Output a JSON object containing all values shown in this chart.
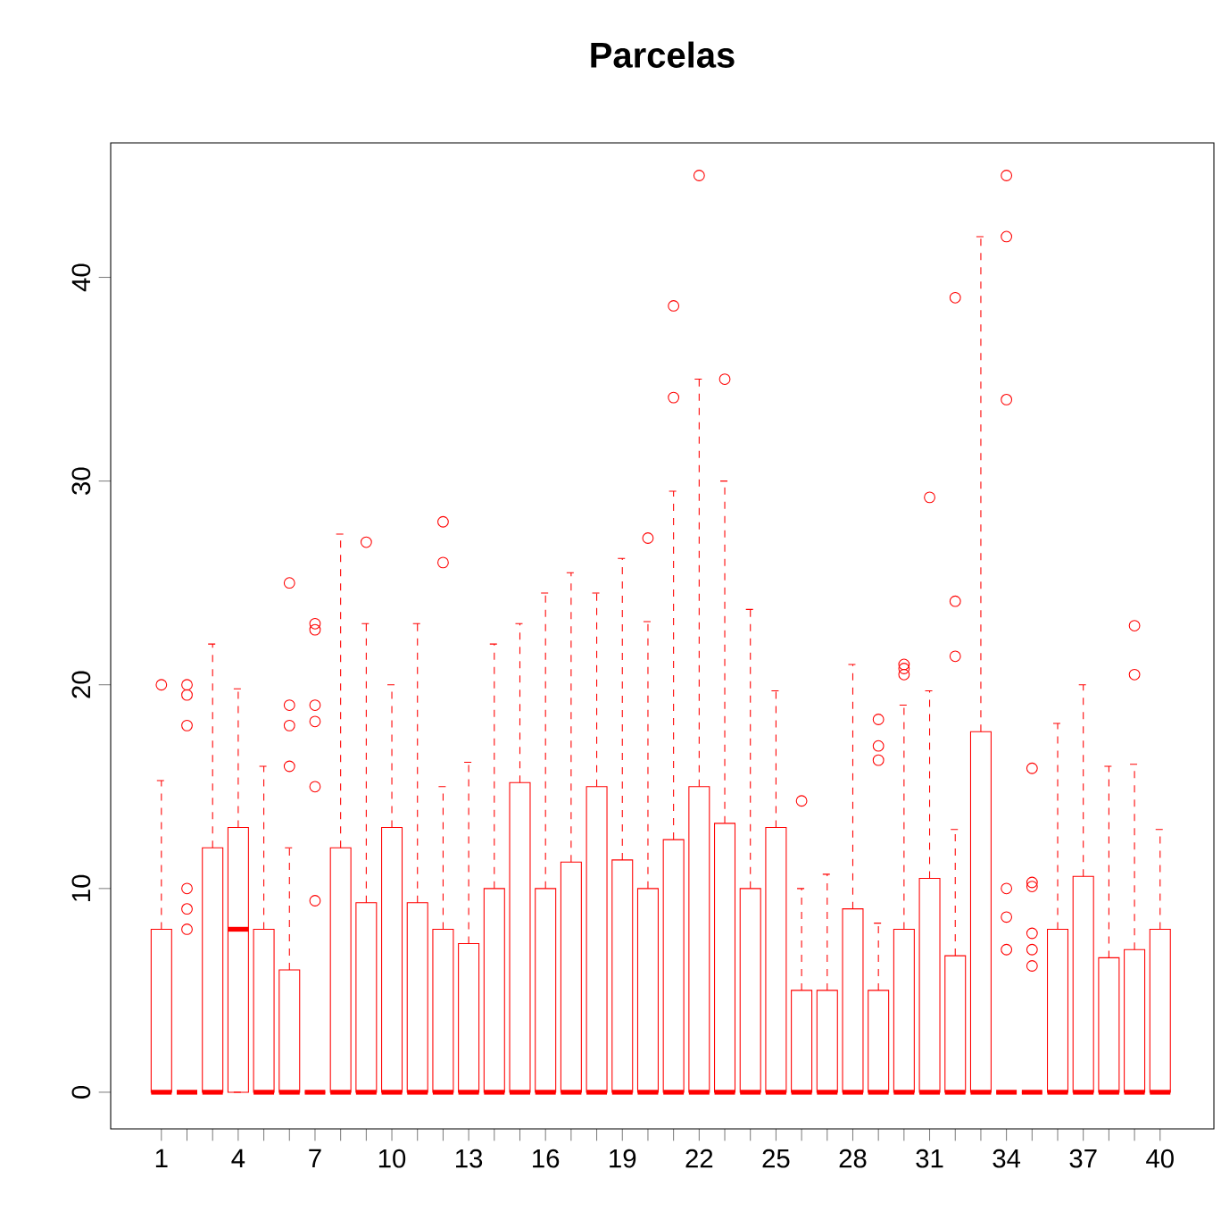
{
  "chart_data": {
    "type": "box",
    "title": "Parcelas",
    "color": "#ff0000",
    "categories": [
      "1",
      null,
      null,
      "4",
      null,
      null,
      "7",
      null,
      null,
      "10",
      null,
      null,
      "13",
      null,
      null,
      "16",
      null,
      null,
      "19",
      null,
      null,
      "22",
      null,
      null,
      "25",
      null,
      null,
      "28",
      null,
      null,
      "31",
      null,
      null,
      "34",
      null,
      null,
      "37",
      null,
      null,
      "40"
    ],
    "ylim": [
      -1.8,
      46.6
    ],
    "yticks": [
      0,
      10,
      20,
      30,
      40
    ],
    "boxes": [
      {
        "low": 0,
        "q1": 0,
        "median": 0,
        "q3": 8,
        "high": 15.3,
        "outliers": [
          20
        ]
      },
      {
        "low": 0,
        "q1": 0,
        "median": 0,
        "q3": 0,
        "high": 0,
        "outliers": [
          8,
          9,
          10,
          18,
          19.5,
          20
        ]
      },
      {
        "low": 0,
        "q1": 0,
        "median": 0,
        "q3": 12,
        "high": 22
      },
      {
        "low": 0,
        "q1": 0,
        "median": 8,
        "q3": 13,
        "high": 19.8
      },
      {
        "low": 0,
        "q1": 0,
        "median": 0,
        "q3": 8,
        "high": 16
      },
      {
        "low": 0,
        "q1": 0,
        "median": 0,
        "q3": 6,
        "high": 12,
        "outliers": [
          16,
          18,
          19,
          25
        ]
      },
      {
        "low": 0,
        "q1": 0,
        "median": 0,
        "q3": 0,
        "high": 0,
        "outliers": [
          9.4,
          15,
          18.2,
          19,
          22.7,
          23
        ]
      },
      {
        "low": 0,
        "q1": 0,
        "median": 0,
        "q3": 12,
        "high": 27.4
      },
      {
        "low": 0,
        "q1": 0,
        "median": 0,
        "q3": 9.3,
        "high": 23,
        "outliers": [
          27
        ]
      },
      {
        "low": 0,
        "q1": 0,
        "median": 0,
        "q3": 13,
        "high": 20
      },
      {
        "low": 0,
        "q1": 0,
        "median": 0,
        "q3": 9.3,
        "high": 23
      },
      {
        "low": 0,
        "q1": 0,
        "median": 0,
        "q3": 8,
        "high": 15,
        "outliers": [
          26,
          28
        ]
      },
      {
        "low": 0,
        "q1": 0,
        "median": 0,
        "q3": 7.3,
        "high": 16.2
      },
      {
        "low": 0,
        "q1": 0,
        "median": 0,
        "q3": 10,
        "high": 22
      },
      {
        "low": 0,
        "q1": 0,
        "median": 0,
        "q3": 15.2,
        "high": 23
      },
      {
        "low": 0,
        "q1": 0,
        "median": 0,
        "q3": 10,
        "high": 24.5
      },
      {
        "low": 0,
        "q1": 0,
        "median": 0,
        "q3": 11.3,
        "high": 25.5
      },
      {
        "low": 0,
        "q1": 0,
        "median": 0,
        "q3": 15,
        "high": 24.5
      },
      {
        "low": 0,
        "q1": 0,
        "median": 0,
        "q3": 11.4,
        "high": 26.2
      },
      {
        "low": 0,
        "q1": 0,
        "median": 0,
        "q3": 10,
        "high": 23.1,
        "outliers": [
          27.2
        ]
      },
      {
        "low": 0,
        "q1": 0,
        "median": 0,
        "q3": 12.4,
        "high": 29.5,
        "outliers": [
          34.1,
          38.6
        ]
      },
      {
        "low": 0,
        "q1": 0,
        "median": 0,
        "q3": 15,
        "high": 35,
        "outliers": [
          45
        ]
      },
      {
        "low": 0,
        "q1": 0,
        "median": 0,
        "q3": 13.2,
        "high": 30,
        "outliers": [
          35
        ]
      },
      {
        "low": 0,
        "q1": 0,
        "median": 0,
        "q3": 10,
        "high": 23.7
      },
      {
        "low": 0,
        "q1": 0,
        "median": 0,
        "q3": 13,
        "high": 19.7
      },
      {
        "low": 0,
        "q1": 0,
        "median": 0,
        "q3": 5,
        "high": 10,
        "outliers": [
          14.3
        ]
      },
      {
        "low": 0,
        "q1": 0,
        "median": 0,
        "q3": 5,
        "high": 10.7
      },
      {
        "low": 0,
        "q1": 0,
        "median": 0,
        "q3": 9,
        "high": 21
      },
      {
        "low": 0,
        "q1": 0,
        "median": 0,
        "q3": 5,
        "high": 8.3,
        "outliers": [
          16.3,
          17,
          18.3
        ]
      },
      {
        "low": 0,
        "q1": 0,
        "median": 0,
        "q3": 8,
        "high": 19,
        "outliers": [
          20.5,
          20.8,
          21
        ]
      },
      {
        "low": 0,
        "q1": 0,
        "median": 0,
        "q3": 10.5,
        "high": 19.7,
        "outliers": [
          29.2
        ]
      },
      {
        "low": 0,
        "q1": 0,
        "median": 0,
        "q3": 6.7,
        "high": 12.9,
        "outliers": [
          21.4,
          24.1,
          39
        ]
      },
      {
        "low": 0,
        "q1": 0,
        "median": 0,
        "q3": 17.7,
        "high": 42
      },
      {
        "low": 0,
        "q1": 0,
        "median": 0,
        "q3": 0,
        "high": 0,
        "outliers": [
          7,
          8.6,
          10,
          34,
          42,
          45
        ]
      },
      {
        "low": 0,
        "q1": 0,
        "median": 0,
        "q3": 0,
        "high": 0,
        "outliers": [
          6.2,
          7,
          7.8,
          10.1,
          10.3,
          15.9
        ]
      },
      {
        "low": 0,
        "q1": 0,
        "median": 0,
        "q3": 8,
        "high": 18.1
      },
      {
        "low": 0,
        "q1": 0,
        "median": 0,
        "q3": 10.6,
        "high": 20
      },
      {
        "low": 0,
        "q1": 0,
        "median": 0,
        "q3": 6.6,
        "high": 16
      },
      {
        "low": 0,
        "q1": 0,
        "median": 0,
        "q3": 7,
        "high": 16.1,
        "outliers": [
          20.5,
          22.9
        ]
      },
      {
        "low": 0,
        "q1": 0,
        "median": 0,
        "q3": 8,
        "high": 12.9
      }
    ]
  }
}
